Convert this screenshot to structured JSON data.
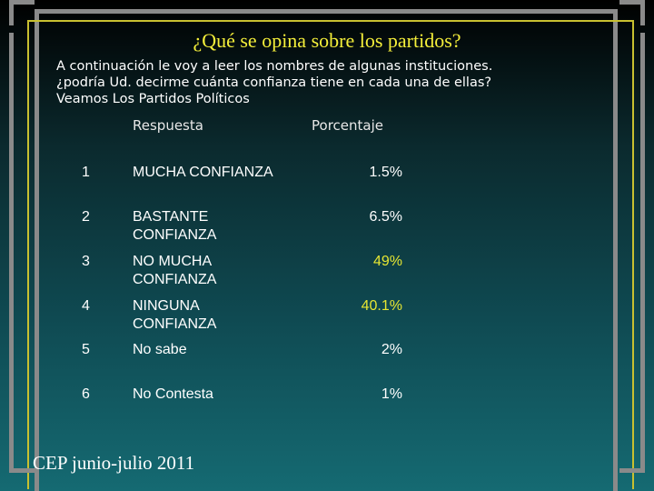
{
  "title": "¿Qué se opina sobre los partidos?",
  "intro_lines": [
    "A continuación le voy a leer los nombres de algunas instituciones.",
    "¿podría Ud. decirme cuánta confianza tiene en cada una de ellas?",
    "Veamos Los Partidos Políticos"
  ],
  "headers": {
    "response": "Respuesta",
    "percentage": "Porcentaje"
  },
  "rows": [
    {
      "num": "1",
      "line1": "MUCHA CONFIANZA",
      "line2": "",
      "pct": "1.5%",
      "highlight": false
    },
    {
      "num": "2",
      "line1": "BASTANTE",
      "line2": "CONFIANZA",
      "pct": "6.5%",
      "highlight": false
    },
    {
      "num": "3",
      "line1": "NO MUCHA",
      "line2": "CONFIANZA",
      "pct": "49%",
      "highlight": true
    },
    {
      "num": "4",
      "line1": "NINGUNA",
      "line2": "CONFIANZA",
      "pct": "40.1%",
      "highlight": true
    },
    {
      "num": "5",
      "line1": "No sabe",
      "line2": "",
      "pct": "2%",
      "highlight": false
    },
    {
      "num": "6",
      "line1": "No Contesta",
      "line2": "",
      "pct": "1%",
      "highlight": false
    }
  ],
  "footer": "CEP junio-julio 2011",
  "colors": {
    "title": "#f5ef3a",
    "highlight": "#e6e632",
    "frame": "#8a8a8a",
    "inner_frame": "#c8c030"
  }
}
